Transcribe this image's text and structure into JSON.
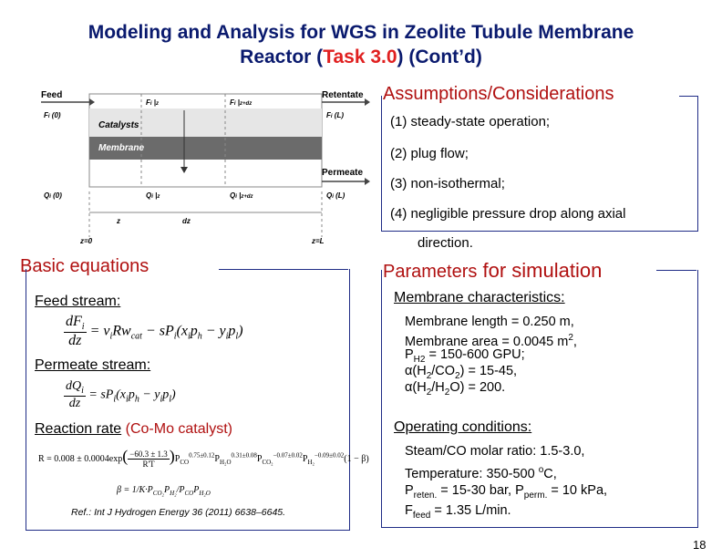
{
  "title": {
    "line1": "Modeling and Analysis for WGS in Zeolite Tubule Membrane",
    "line2_before": "Reactor (",
    "line2_task": "Task 3.0",
    "line2_after": ") (Cont’d)"
  },
  "diagram": {
    "feed": "Feed",
    "retentate": "Retentate",
    "permeate": "Permeate",
    "catalysts": "Catalysts",
    "membrane": "Membrane",
    "fi0": "F",
    "fiL": "F",
    "qi0": "Q",
    "qiL": "Q",
    "fiz": "F",
    "fizdz": "F",
    "qiz": "Q",
    "qizdz": "Q",
    "z": "z",
    "dz": "dz",
    "z0": "z=0",
    "zL": "z=L"
  },
  "assumptions": {
    "heading": "Assumptions/Considerations",
    "items": [
      "(1) steady-state operation;",
      "(2) plug flow;",
      "(3) non-isothermal;",
      "(4) negligible pressure drop along axial",
      "direction."
    ]
  },
  "basic": {
    "heading": "Basic equations",
    "feed_label": "Feed stream:",
    "permeate_label": "Permeate stream:",
    "reaction_label": "Reaction rate",
    "reaction_cat": "(Co-Mo catalyst)",
    "ref": "Ref.: Int J Hydrogen Energy 36 (2011) 6638–6645."
  },
  "params": {
    "heading_a": "Parameters",
    "heading_b": " for simulation",
    "membrane_label": "Membrane characteristics:",
    "operating_label": "Operating conditions:",
    "m1": "Membrane length = 0.250 m,",
    "m2": "Membrane area = 0.0045 m",
    "m2_sup": "2",
    "m2_end": ",",
    "m3a": "P",
    "m3_sub": "H2",
    "m3b": " = 150-600 GPU;",
    "m4": "α(H",
    "m4_s1": "2",
    "m4_b": "/CO",
    "m4_s2": "2",
    "m4_c": ") = 15-45,",
    "m5": "α(H",
    "m5_s1": "2",
    "m5_b": "/H",
    "m5_s2": "2",
    "m5_c": "O) = 200.",
    "o1": "Steam/CO molar ratio: 1.5-3.0,",
    "o2": "Temperature: 350-500 ",
    "o2_sup": "o",
    "o2_end": "C,",
    "o3a": "P",
    "o3_sub1": "reten.",
    "o3b": " = 15-30 bar, P",
    "o3_sub2": "perm.",
    "o3c": " = 10 kPa,",
    "o4a": "F",
    "o4_sub": "feed",
    "o4b": " = 1.35 L/min."
  },
  "page_number": "18",
  "colors": {
    "title": "#0a1a6e",
    "task": "#e02020",
    "heading": "#b01010",
    "box": "#1f2c86"
  }
}
